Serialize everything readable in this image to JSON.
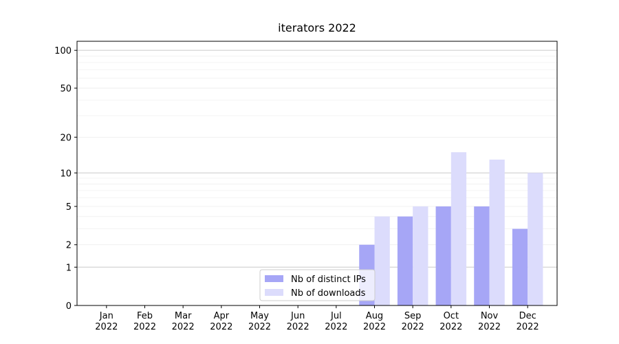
{
  "chart_data": {
    "type": "bar",
    "title": "iterators 2022",
    "categories": [
      "Jan 2022",
      "Feb 2022",
      "Mar 2022",
      "Apr 2022",
      "May 2022",
      "Jun 2022",
      "Jul 2022",
      "Aug 2022",
      "Sep 2022",
      "Oct 2022",
      "Nov 2022",
      "Dec 2022"
    ],
    "series": [
      {
        "name": "Nb of distinct IPs",
        "color": "#a6a6f6",
        "values": [
          0,
          0,
          0,
          0,
          0,
          0,
          0,
          2,
          4,
          5,
          5,
          3
        ]
      },
      {
        "name": "Nb of downloads",
        "color": "#dcdcfc",
        "values": [
          0,
          0,
          0,
          0,
          0,
          0,
          0,
          4,
          5,
          15,
          13,
          10
        ]
      }
    ],
    "yscale": "symlog",
    "ylim": [
      0,
      118
    ],
    "yticks": [
      0,
      1,
      2,
      5,
      10,
      20,
      50,
      100
    ],
    "major_grid": [
      1,
      10,
      100
    ],
    "minor_grid": [
      3,
      4,
      6,
      7,
      8,
      9,
      30,
      40,
      60,
      70,
      80,
      90
    ],
    "grid": true,
    "legend": "lower center"
  }
}
